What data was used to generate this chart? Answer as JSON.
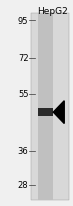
{
  "title": "HepG2",
  "mw_markers": [
    95,
    72,
    55,
    36,
    28
  ],
  "band_mw": 48,
  "background_color": "#f0f0f0",
  "gel_color": "#d8d8d8",
  "lane_color": "#c0c0c0",
  "band_color": "#2a2a2a",
  "title_fontsize": 6.5,
  "marker_fontsize": 6.0,
  "figsize": [
    0.73,
    2.07
  ],
  "dpi": 100
}
